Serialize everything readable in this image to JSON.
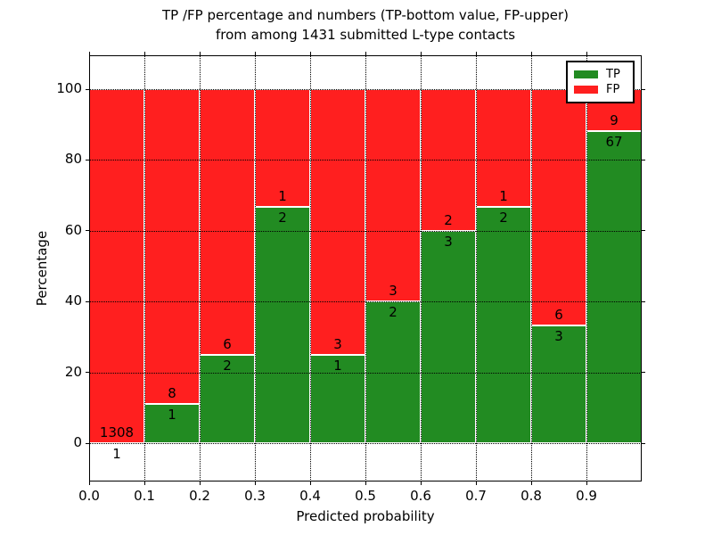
{
  "title": {
    "line1": "TP /FP percentage and numbers (TP-bottom value, FP-upper)",
    "line2": "from among 1431 submitted L-type contacts"
  },
  "axes": {
    "xlabel": "Predicted probability",
    "ylabel": "Percentage",
    "x_ticks": [
      "0.0",
      "0.1",
      "0.2",
      "0.3",
      "0.4",
      "0.5",
      "0.6",
      "0.7",
      "0.8",
      "0.9"
    ],
    "y_ticks": [
      "0",
      "20",
      "40",
      "60",
      "80",
      "100"
    ]
  },
  "legend": {
    "position": "upper right",
    "items": [
      {
        "label": "TP",
        "color": "#228b22"
      },
      {
        "label": "FP",
        "color": "#ff1f1f"
      }
    ]
  },
  "chart_data": {
    "type": "bar",
    "stacked": true,
    "unit": "percent of bin total",
    "title": "TP /FP percentage and numbers (TP-bottom value, FP-upper) from among 1431 submitted L-type contacts",
    "xlabel": "Predicted probability",
    "ylabel": "Percentage",
    "bin_width": 0.1,
    "bin_starts": [
      0.0,
      0.1,
      0.2,
      0.3,
      0.4,
      0.5,
      0.6,
      0.7,
      0.8,
      0.9
    ],
    "series": [
      {
        "name": "TP",
        "color": "#228b22",
        "counts": [
          1,
          1,
          2,
          2,
          1,
          2,
          3,
          2,
          3,
          67
        ]
      },
      {
        "name": "FP",
        "color": "#ff1f1f",
        "counts": [
          1308,
          8,
          6,
          1,
          3,
          3,
          2,
          1,
          6,
          9
        ]
      }
    ],
    "tp_percentages": [
      0.1,
      11.1,
      25.0,
      66.7,
      25.0,
      40.0,
      60.0,
      66.7,
      33.3,
      88.2
    ],
    "total_contacts": 1431,
    "xlim": [
      0.0,
      1.0
    ],
    "y_ticks": [
      0,
      20,
      40,
      60,
      80,
      100
    ],
    "ylim_shown": [
      0,
      100
    ],
    "grid": "dotted black, both axes",
    "legend_position": "upper right"
  }
}
